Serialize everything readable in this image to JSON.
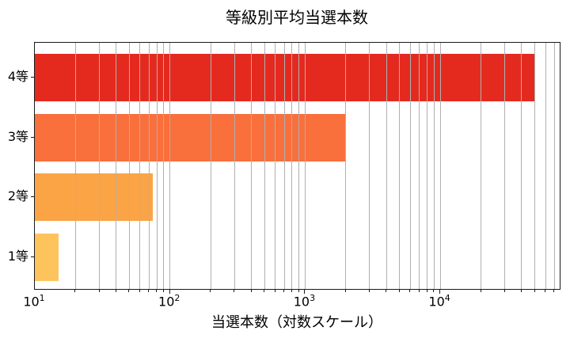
{
  "chart_data": {
    "type": "bar",
    "orientation": "horizontal",
    "title": "等級別平均当選本数",
    "xlabel": "当選本数（対数スケール）",
    "ylabel": "",
    "x_scale": "log",
    "xlim": [
      10,
      76500
    ],
    "x_tick_exponents": [
      1,
      2,
      3,
      4
    ],
    "grid": "vertical, major and minor log ticks, drawn above bars",
    "legend": "none",
    "categories_top_to_bottom": [
      "4等",
      "3等",
      "2等",
      "1等"
    ],
    "values_top_to_bottom": [
      50000,
      2000,
      75,
      15
    ],
    "bar_colors_top_to_bottom": [
      "#e42a1f",
      "#f9703c",
      "#faa446",
      "#fdc45e"
    ],
    "grid_color": "#b0b0b0",
    "spine_color": "#1a1a1a",
    "text_color": "#000000",
    "background_color": "#ffffff"
  }
}
